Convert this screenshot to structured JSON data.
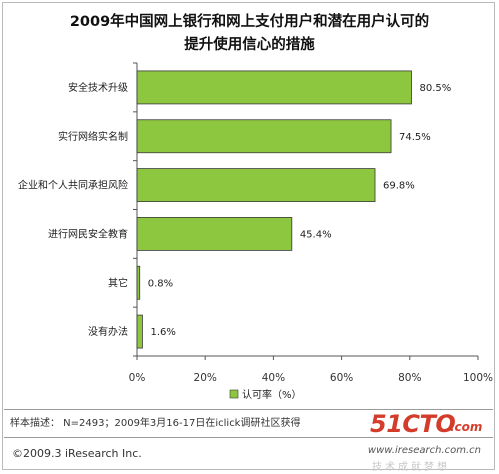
{
  "header": {
    "title_line1": "2009年中国网上银行和网上支付用户和潜在用户认可的",
    "title_line2": "提升使用信心的措施"
  },
  "chart_data": {
    "type": "bar",
    "orientation": "horizontal",
    "categories": [
      "安全技术升级",
      "实行网络实名制",
      "企业和个人共同承担风险",
      "进行网民安全教育",
      "其它",
      "没有办法"
    ],
    "series": [
      {
        "name": "认可率（%）",
        "values": [
          80.5,
          74.5,
          69.8,
          45.4,
          0.8,
          1.6
        ],
        "color": "#8dc63f"
      }
    ],
    "data_labels": [
      "80.5%",
      "74.5%",
      "69.8%",
      "45.4%",
      "0.8%",
      "1.6%"
    ],
    "xlim": [
      0,
      100
    ],
    "xticks": [
      0,
      20,
      40,
      60,
      80,
      100
    ],
    "xtick_labels": [
      "0%",
      "20%",
      "40%",
      "60%",
      "80%",
      "100%"
    ],
    "legend_position": "bottom-center",
    "grid": false
  },
  "footer": {
    "note": "样本描述： N=2493；2009年3月16-17日在iclick调研社区获得",
    "copyright": "©2009.3 iResearch Inc.",
    "site": "www.iresearch.com.cn"
  },
  "watermark": {
    "main": "51CTO",
    "sub": ".com",
    "tag": "技术成就梦想"
  },
  "colors": {
    "bar_fill": "#8dc63f",
    "bar_border": "#3a3a3a",
    "axis": "#555555"
  }
}
